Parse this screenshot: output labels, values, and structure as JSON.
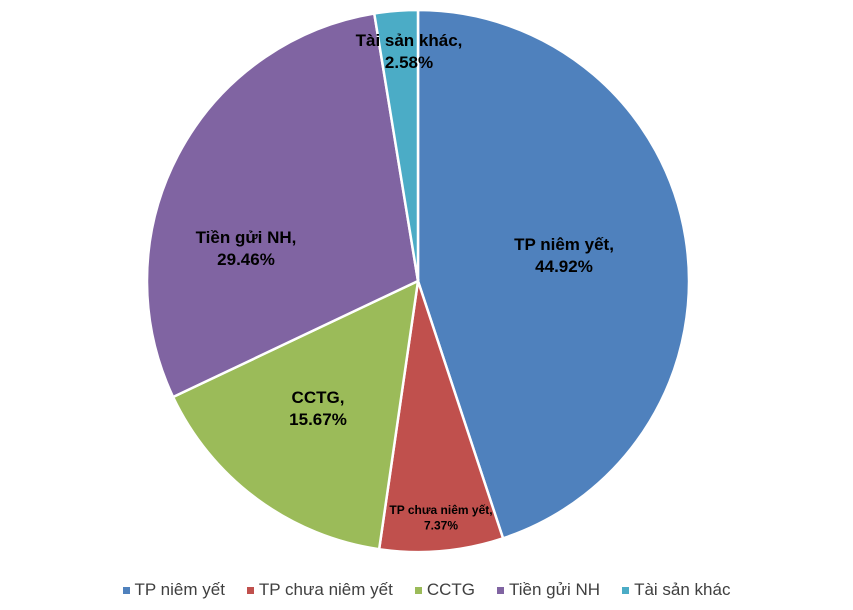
{
  "chart_data": {
    "type": "pie",
    "start_angle": "12 o'clock, clockwise",
    "legend_position": "bottom",
    "slices": [
      {
        "label": "TP niêm yết",
        "value": 44.92,
        "data_label_name": "TP niêm yết,",
        "data_label_value": "44.92%",
        "color": "#4F81BD"
      },
      {
        "label": "TP chưa niêm yết",
        "value": 7.37,
        "data_label_name": "TP chưa niêm yết,",
        "data_label_value": "7.37%",
        "color": "#C0504D"
      },
      {
        "label": "CCTG",
        "value": 15.67,
        "data_label_name": "CCTG,",
        "data_label_value": "15.67%",
        "color": "#9BBB59"
      },
      {
        "label": "Tiền gửi NH",
        "value": 29.46,
        "data_label_name": "Tiền gửi NH,",
        "data_label_value": "29.46%",
        "color": "#8064A2"
      },
      {
        "label": "Tài sản khác",
        "value": 2.58,
        "data_label_name": "Tài sản khác,",
        "data_label_value": "2.58%",
        "color": "#4BACC6"
      }
    ]
  }
}
